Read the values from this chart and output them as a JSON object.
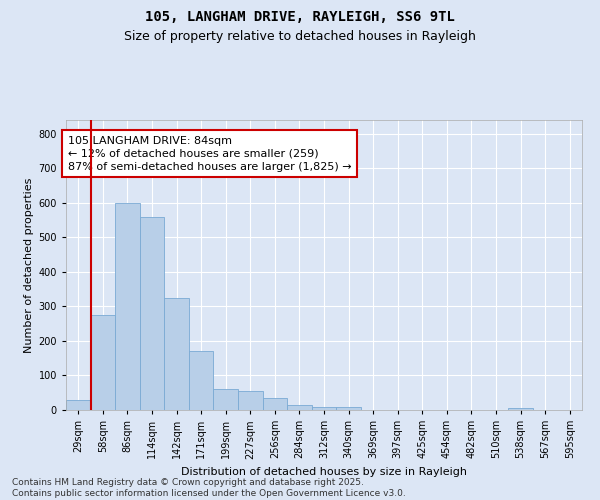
{
  "title1": "105, LANGHAM DRIVE, RAYLEIGH, SS6 9TL",
  "title2": "Size of property relative to detached houses in Rayleigh",
  "xlabel": "Distribution of detached houses by size in Rayleigh",
  "ylabel": "Number of detached properties",
  "annotation_line1": "105 LANGHAM DRIVE: 84sqm",
  "annotation_line2": "← 12% of detached houses are smaller (259)",
  "annotation_line3": "87% of semi-detached houses are larger (1,825) →",
  "footer1": "Contains HM Land Registry data © Crown copyright and database right 2025.",
  "footer2": "Contains public sector information licensed under the Open Government Licence v3.0.",
  "bin_labels": [
    "29sqm",
    "58sqm",
    "86sqm",
    "114sqm",
    "142sqm",
    "171sqm",
    "199sqm",
    "227sqm",
    "256sqm",
    "284sqm",
    "312sqm",
    "340sqm",
    "369sqm",
    "397sqm",
    "425sqm",
    "454sqm",
    "482sqm",
    "510sqm",
    "538sqm",
    "567sqm",
    "595sqm"
  ],
  "bar_values": [
    30,
    275,
    600,
    560,
    325,
    170,
    60,
    55,
    35,
    15,
    10,
    10,
    0,
    0,
    0,
    0,
    0,
    0,
    5,
    0,
    0
  ],
  "bar_color": "#b8cfe8",
  "bar_edge_color": "#7aaad4",
  "vline_x": 1.0,
  "vline_color": "#cc0000",
  "ylim": [
    0,
    840
  ],
  "yticks": [
    0,
    100,
    200,
    300,
    400,
    500,
    600,
    700,
    800
  ],
  "background_color": "#dce6f5",
  "plot_background": "#dce6f5",
  "annotation_box_color": "#ffffff",
  "annotation_box_edge": "#cc0000",
  "grid_color": "#ffffff",
  "title_fontsize": 10,
  "subtitle_fontsize": 9,
  "annotation_fontsize": 8,
  "axis_label_fontsize": 8,
  "tick_fontsize": 7,
  "footer_fontsize": 6.5
}
